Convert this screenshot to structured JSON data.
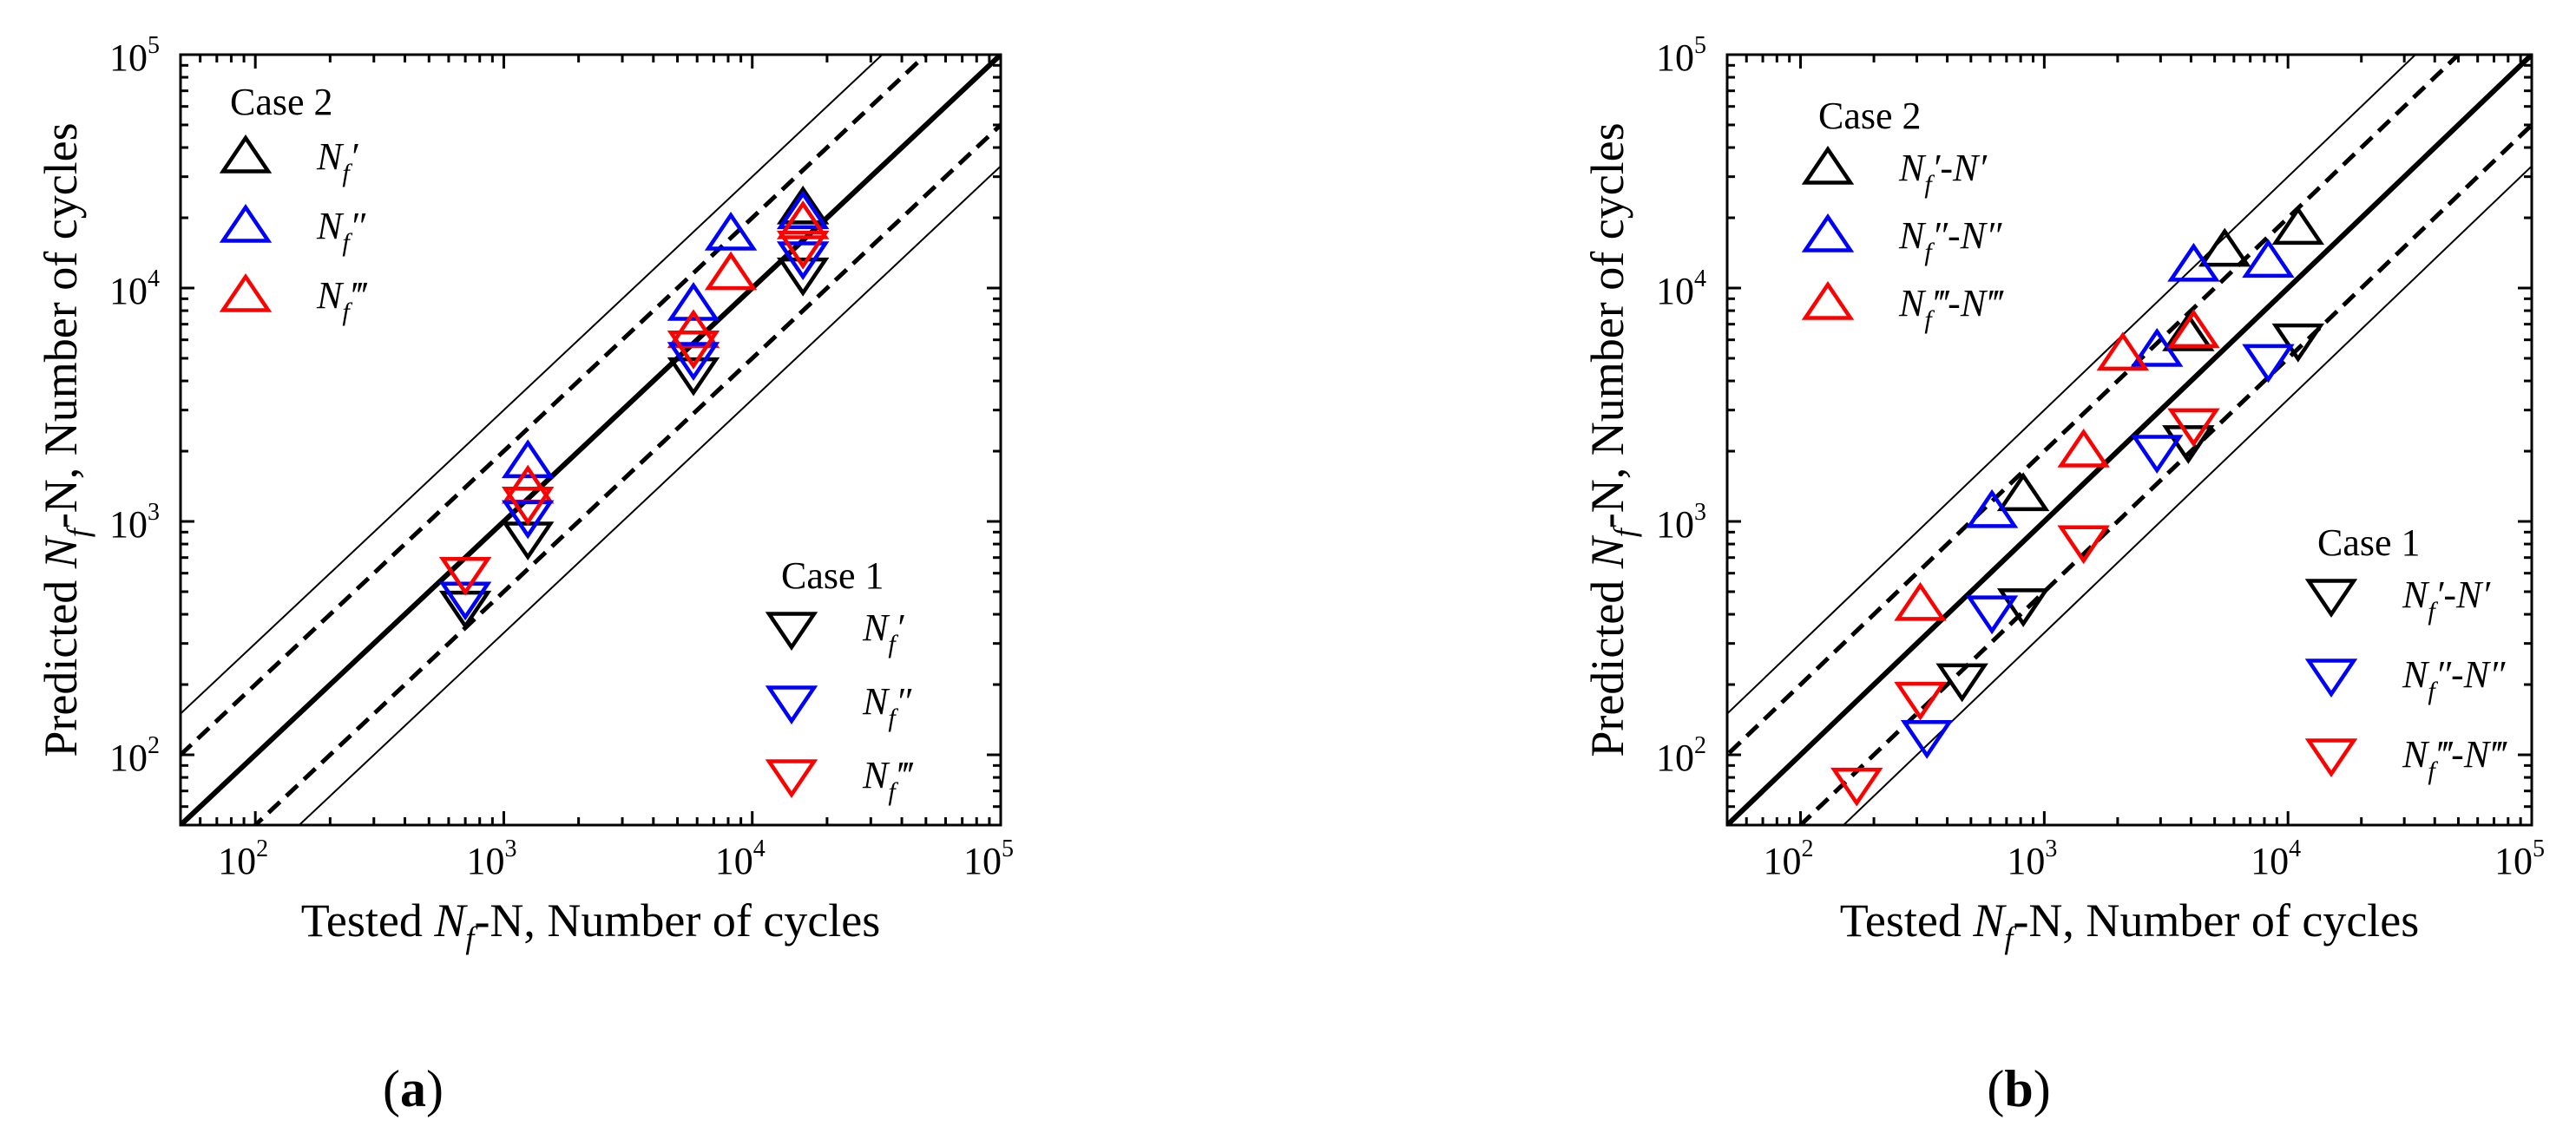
{
  "figure": {
    "panels": [
      {
        "label_prefix": "(",
        "label_letter": "a",
        "label_suffix": ")",
        "xlabel_pre": "Tested ",
        "xlabel_var": "N",
        "xlabel_sub": "f",
        "xlabel_post": "-N,   Number of cycles",
        "ylabel_pre": "Predicted ",
        "ylabel_var": "N",
        "ylabel_sub": "f",
        "ylabel_post": "-N,  Number of cycles",
        "legend_top_title": "Case 2",
        "legend_top": [
          {
            "text": "N",
            "sub": "f",
            "primes": "′",
            "color": "#000000",
            "marker": "triangle-up-icon"
          },
          {
            "text": "N",
            "sub": "f",
            "primes": "″",
            "color": "#0000ff",
            "marker": "triangle-up-icon"
          },
          {
            "text": "N",
            "sub": "f",
            "primes": "‴",
            "color": "#ff0000",
            "marker": "triangle-up-icon"
          }
        ],
        "legend_bottom_title": "Case 1",
        "legend_bottom": [
          {
            "text": "N",
            "sub": "f",
            "primes": "′",
            "color": "#000000",
            "marker": "triangle-down-icon"
          },
          {
            "text": "N",
            "sub": "f",
            "primes": "″",
            "color": "#0000ff",
            "marker": "triangle-down-icon"
          },
          {
            "text": "N",
            "sub": "f",
            "primes": "‴",
            "color": "#ff0000",
            "marker": "triangle-down-icon"
          }
        ]
      },
      {
        "label_prefix": "(",
        "label_letter": "b",
        "label_suffix": ")",
        "xlabel_pre": "Tested ",
        "xlabel_var": "N",
        "xlabel_sub": "f",
        "xlabel_post": "-N,   Number of cycles",
        "ylabel_pre": "Predicted ",
        "ylabel_var": "N",
        "ylabel_sub": "f",
        "ylabel_post": "-N,  Number of cycles",
        "legend_top_title": "Case 2",
        "legend_top": [
          {
            "text": "N",
            "sub": "f",
            "primes": "′-N′",
            "color": "#000000",
            "marker": "triangle-up-icon"
          },
          {
            "text": "N",
            "sub": "f",
            "primes": "″-N″",
            "color": "#0000ff",
            "marker": "triangle-up-icon"
          },
          {
            "text": "N",
            "sub": "f",
            "primes": "‴-N‴",
            "color": "#ff0000",
            "marker": "triangle-up-icon"
          }
        ],
        "legend_bottom_title": "Case 1",
        "legend_bottom": [
          {
            "text": "N",
            "sub": "f",
            "primes": "′-N′",
            "color": "#000000",
            "marker": "triangle-down-icon"
          },
          {
            "text": "N",
            "sub": "f",
            "primes": "″-N″",
            "color": "#0000ff",
            "marker": "triangle-down-icon"
          },
          {
            "text": "N",
            "sub": "f",
            "primes": "‴-N‴",
            "color": "#ff0000",
            "marker": "triangle-down-icon"
          }
        ]
      }
    ]
  },
  "chart_data": [
    {
      "type": "scatter",
      "title": "",
      "xscale": "log",
      "yscale": "log",
      "xlim": [
        50,
        100000
      ],
      "ylim": [
        50,
        100000
      ],
      "xticks": [
        {
          "base": "10",
          "exp": "2"
        },
        {
          "base": "10",
          "exp": "3"
        },
        {
          "base": "10",
          "exp": "4"
        },
        {
          "base": "10",
          "exp": "5"
        }
      ],
      "yticks": [
        {
          "base": "10",
          "exp": "2"
        },
        {
          "base": "10",
          "exp": "3"
        },
        {
          "base": "10",
          "exp": "4"
        },
        {
          "base": "10",
          "exp": "5"
        }
      ],
      "reference_lines": [
        {
          "factor": 1,
          "style": "solid-thick"
        },
        {
          "factor": 2,
          "style": "dashed"
        },
        {
          "factor": 0.5,
          "style": "dashed"
        },
        {
          "factor": 3,
          "style": "solid-thin"
        },
        {
          "factor": 0.333,
          "style": "solid-thin"
        }
      ],
      "series": [
        {
          "name": "Case 2 Nf′",
          "marker": "up",
          "color": "#000000",
          "points": [
            [
              16000,
              22000
            ]
          ]
        },
        {
          "name": "Case 2 Nf″",
          "marker": "up",
          "color": "#0000ff",
          "points": [
            [
              1250,
              1800
            ],
            [
              5800,
              8500
            ],
            [
              8200,
              17000
            ],
            [
              16000,
              21000
            ]
          ]
        },
        {
          "name": "Case 2 Nf‴",
          "marker": "up",
          "color": "#ff0000",
          "points": [
            [
              1250,
              1400
            ],
            [
              5800,
              6500
            ],
            [
              8200,
              11500
            ],
            [
              16000,
              19000
            ]
          ]
        },
        {
          "name": "Case 1 Nf′",
          "marker": "down",
          "color": "#000000",
          "points": [
            [
              700,
              430
            ],
            [
              1250,
              850
            ],
            [
              5800,
              4300
            ],
            [
              16000,
              11500
            ]
          ]
        },
        {
          "name": "Case 1 Nf″",
          "marker": "down",
          "color": "#0000ff",
          "points": [
            [
              700,
              470
            ],
            [
              1250,
              1050
            ],
            [
              5800,
              5000
            ],
            [
              16000,
              13500
            ]
          ]
        },
        {
          "name": "Case 1 Nf‴",
          "marker": "down",
          "color": "#ff0000",
          "points": [
            [
              700,
              600
            ],
            [
              1250,
              1200
            ],
            [
              5800,
              5600
            ],
            [
              16000,
              15000
            ]
          ]
        }
      ]
    },
    {
      "type": "scatter",
      "title": "",
      "xscale": "log",
      "yscale": "log",
      "xlim": [
        50,
        100000
      ],
      "ylim": [
        50,
        100000
      ],
      "xticks": [
        {
          "base": "10",
          "exp": "2"
        },
        {
          "base": "10",
          "exp": "3"
        },
        {
          "base": "10",
          "exp": "4"
        },
        {
          "base": "10",
          "exp": "5"
        }
      ],
      "yticks": [
        {
          "base": "10",
          "exp": "2"
        },
        {
          "base": "10",
          "exp": "3"
        },
        {
          "base": "10",
          "exp": "4"
        },
        {
          "base": "10",
          "exp": "5"
        }
      ],
      "reference_lines": [
        {
          "factor": 1,
          "style": "solid-thick"
        },
        {
          "factor": 2,
          "style": "dashed"
        },
        {
          "factor": 0.5,
          "style": "dashed"
        },
        {
          "factor": 3,
          "style": "solid-thin"
        },
        {
          "factor": 0.333,
          "style": "solid-thin"
        }
      ],
      "series": [
        {
          "name": "Case 2 Nf′-N′",
          "marker": "up",
          "color": "#000000",
          "points": [
            [
              820,
              1300
            ],
            [
              3900,
              6300
            ],
            [
              5500,
              14500
            ],
            [
              11000,
              18000
            ]
          ]
        },
        {
          "name": "Case 2 Nf″-N″",
          "marker": "up",
          "color": "#0000ff",
          "points": [
            [
              610,
              1100
            ],
            [
              2900,
              5400
            ],
            [
              4100,
              12500
            ],
            [
              8300,
              13000
            ]
          ]
        },
        {
          "name": "Case 2 Nf‴-N‴",
          "marker": "up",
          "color": "#ff0000",
          "points": [
            [
              310,
              440
            ],
            [
              1450,
              2000
            ],
            [
              2100,
              5200
            ],
            [
              4100,
              6500
            ]
          ]
        },
        {
          "name": "Case 1 Nf′-N′",
          "marker": "down",
          "color": "#000000",
          "points": [
            [
              460,
              210
            ],
            [
              820,
              440
            ],
            [
              3900,
              2200
            ],
            [
              11000,
              6000
            ]
          ]
        },
        {
          "name": "Case 1 Nf″-N″",
          "marker": "down",
          "color": "#0000ff",
          "points": [
            [
              330,
              120
            ],
            [
              610,
              410
            ],
            [
              2900,
              2000
            ],
            [
              8300,
              4900
            ]
          ]
        },
        {
          "name": "Case 1 Nf‴-N‴",
          "marker": "down",
          "color": "#ff0000",
          "points": [
            [
              170,
              75
            ],
            [
              310,
              175
            ],
            [
              1450,
              820
            ],
            [
              4100,
              2600
            ]
          ]
        }
      ]
    }
  ]
}
